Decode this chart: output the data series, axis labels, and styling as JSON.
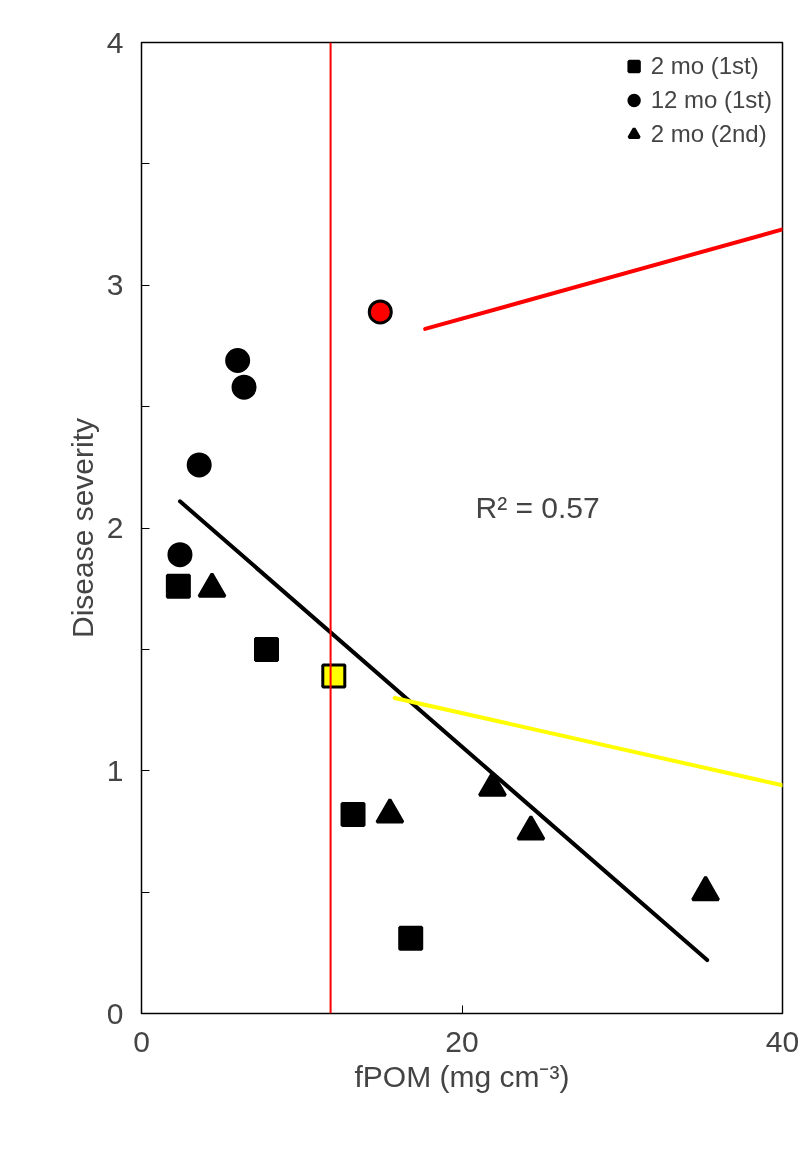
{
  "chart_data": {
    "type": "scatter",
    "xlabel": "fPOM (mg cm⁻³)",
    "ylabel": "Disease severity",
    "xlim": [
      0,
      40
    ],
    "ylim": [
      0,
      4
    ],
    "xticks": [
      0,
      20,
      40
    ],
    "yticks": [
      0,
      {
        "value": 0.5,
        "label": null
      },
      1,
      {
        "value": 1.5,
        "label": null
      },
      2,
      {
        "value": 2.5,
        "label": null
      },
      3,
      {
        "value": 3.5,
        "label": null
      },
      4
    ],
    "grid": false,
    "legend": "top right",
    "annotations": [
      "R² = 0.57"
    ],
    "ref_lines": [
      {
        "axis": "x",
        "value": 11.8,
        "color": "#ff0000"
      }
    ],
    "series": [
      {
        "name": "2 mo (1st)",
        "marker": "square",
        "color": "#000000",
        "colors": [
          "#000000",
          "#000000",
          "#ffff00",
          "#000000",
          "#000000"
        ],
        "x": [
          2.3,
          7.8,
          12.0,
          13.2,
          16.8
        ],
        "values": [
          1.76,
          1.5,
          1.39,
          0.82,
          0.31
        ]
      },
      {
        "name": "12 mo (1st)",
        "marker": "circle",
        "color": "#000000",
        "colors": [
          "#000000",
          "#000000",
          "#000000",
          "#000000",
          "#ff0000"
        ],
        "x": [
          2.4,
          3.6,
          6.0,
          6.4,
          14.9
        ],
        "values": [
          1.89,
          2.26,
          2.69,
          2.58,
          2.89
        ]
      },
      {
        "name": "2 mo (2nd)",
        "marker": "triangle",
        "color": "#000000",
        "x": [
          4.4,
          15.5,
          21.9,
          24.3,
          35.2
        ],
        "values": [
          1.75,
          0.82,
          0.93,
          0.75,
          0.5
        ]
      },
      {
        "type": "line",
        "color": "#000000",
        "x": [
          2.4,
          35.3
        ],
        "values": [
          2.11,
          0.22
        ]
      },
      {
        "type": "line",
        "color": "#ff0000",
        "x": [
          17.7,
          40
        ],
        "values": [
          2.82,
          3.23
        ]
      },
      {
        "type": "line",
        "color": "#ffff00",
        "x": [
          15.8,
          40
        ],
        "values": [
          1.3,
          0.94
        ]
      }
    ]
  }
}
